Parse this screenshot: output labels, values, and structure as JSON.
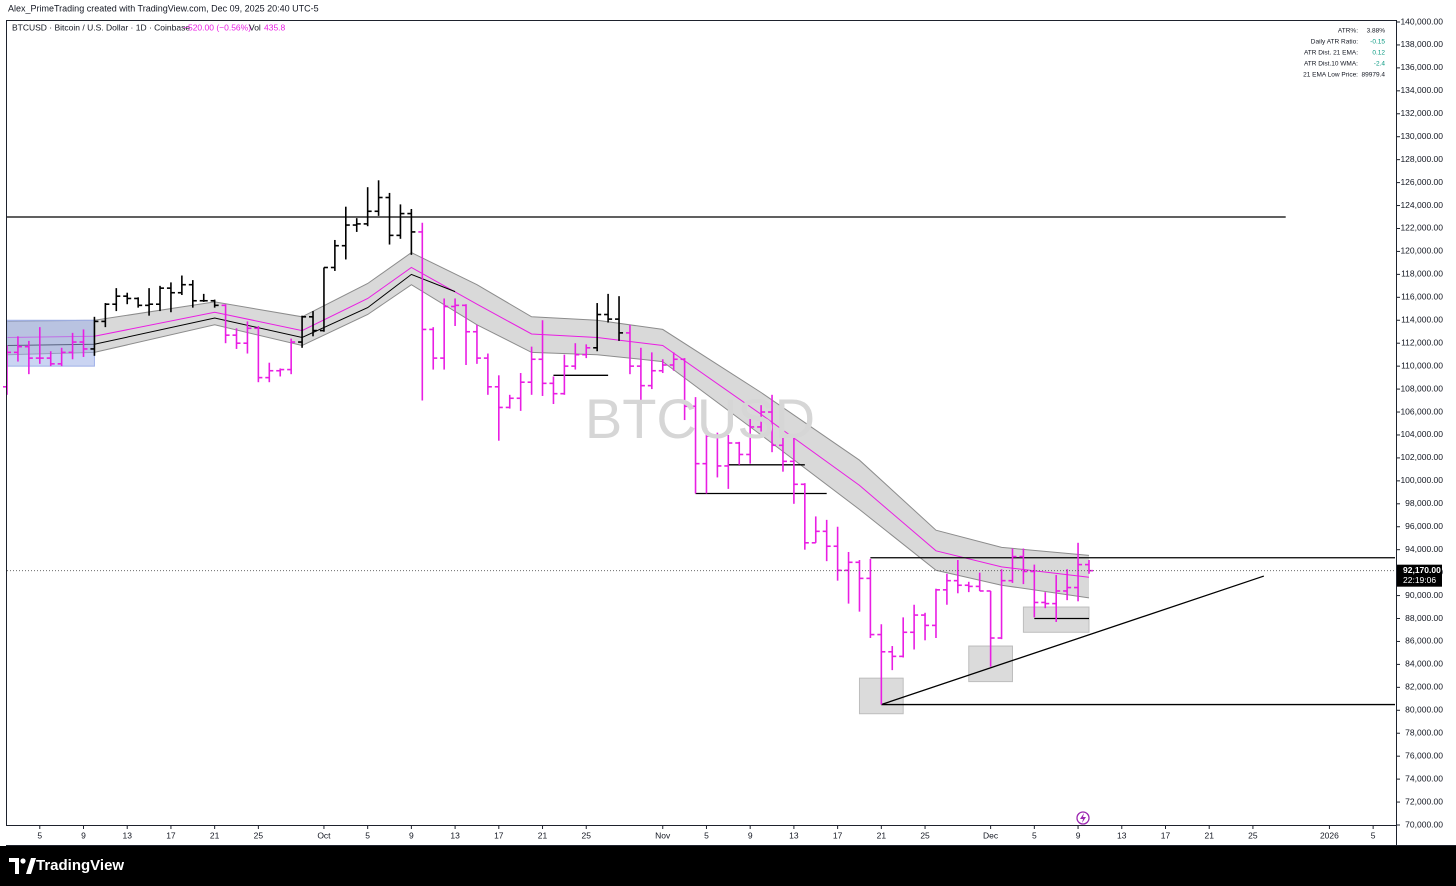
{
  "credit": "Alex_PrimeTrading created with TradingView.com, Dec 09, 2025 20:40 UTC-5",
  "brand": "TradingView",
  "chart_data": {
    "type": "ohlc",
    "title": "BTCUSD · Bitcoin / U.S. Dollar · 1D · Coinbase",
    "change": "−520.00 (−0.56%)",
    "volume_label": "Vol",
    "volume": "435.8",
    "watermark": "BTCUSD",
    "stats": [
      {
        "label": "ATR%:",
        "value": "3.88%",
        "color": "#131722"
      },
      {
        "label": "Daily ATR Ratio:",
        "value": "-0.15",
        "color": "#089981"
      },
      {
        "label": "ATR Dist. 21 EMA:",
        "value": "0.12",
        "color": "#089981"
      },
      {
        "label": "ATR Dist.10 WMA:",
        "value": "-2.4",
        "color": "#089981"
      },
      {
        "label": "21 EMA Low Price:",
        "value": "89979.4",
        "color": "#131722"
      }
    ],
    "x": [
      "2025-09-02",
      "2025-09-03",
      "2025-09-04",
      "2025-09-05",
      "2025-09-06",
      "2025-09-07",
      "2025-09-08",
      "2025-09-09",
      "2025-09-10",
      "2025-09-11",
      "2025-09-12",
      "2025-09-13",
      "2025-09-14",
      "2025-09-15",
      "2025-09-16",
      "2025-09-17",
      "2025-09-18",
      "2025-09-19",
      "2025-09-20",
      "2025-09-21",
      "2025-09-22",
      "2025-09-23",
      "2025-09-24",
      "2025-09-25",
      "2025-09-26",
      "2025-09-27",
      "2025-09-28",
      "2025-09-29",
      "2025-09-30",
      "2025-10-01",
      "2025-10-02",
      "2025-10-03",
      "2025-10-04",
      "2025-10-05",
      "2025-10-06",
      "2025-10-07",
      "2025-10-08",
      "2025-10-09",
      "2025-10-10",
      "2025-10-11",
      "2025-10-12",
      "2025-10-13",
      "2025-10-14",
      "2025-10-15",
      "2025-10-16",
      "2025-10-17",
      "2025-10-18",
      "2025-10-19",
      "2025-10-20",
      "2025-10-21",
      "2025-10-22",
      "2025-10-23",
      "2025-10-24",
      "2025-10-25",
      "2025-10-26",
      "2025-10-27",
      "2025-10-28",
      "2025-10-29",
      "2025-10-30",
      "2025-10-31",
      "2025-11-01",
      "2025-11-02",
      "2025-11-03",
      "2025-11-04",
      "2025-11-05",
      "2025-11-06",
      "2025-11-07",
      "2025-11-08",
      "2025-11-09",
      "2025-11-10",
      "2025-11-11",
      "2025-11-12",
      "2025-11-13",
      "2025-11-14",
      "2025-11-15",
      "2025-11-16",
      "2025-11-17",
      "2025-11-18",
      "2025-11-19",
      "2025-11-20",
      "2025-11-21",
      "2025-11-22",
      "2025-11-23",
      "2025-11-24",
      "2025-11-25",
      "2025-11-26",
      "2025-11-27",
      "2025-11-28",
      "2025-11-29",
      "2025-11-30",
      "2025-12-01",
      "2025-12-02",
      "2025-12-03",
      "2025-12-04",
      "2025-12-05",
      "2025-12-06",
      "2025-12-07",
      "2025-12-08",
      "2025-12-09",
      "2025-12-10"
    ],
    "open": [
      108200,
      111200,
      111700,
      110700,
      110700,
      110200,
      111200,
      112100,
      111500,
      113900,
      115400,
      116100,
      115900,
      115300,
      115400,
      116800,
      116400,
      117100,
      115700,
      115700,
      115300,
      112700,
      112000,
      113300,
      109000,
      109600,
      109700,
      112100,
      114300,
      113100,
      118600,
      120500,
      122300,
      122400,
      123500,
      124700,
      121400,
      123300,
      121700,
      113200,
      110700,
      115200,
      115300,
      113000,
      110700,
      108200,
      106400,
      107200,
      108600,
      110600,
      108500,
      107600,
      110000,
      111000,
      111600,
      114500,
      114100,
      112900,
      110000,
      108300,
      109600,
      110100,
      110600,
      106500,
      101500,
      103900,
      101300,
      103300,
      102300,
      104700,
      106000,
      103100,
      101700,
      99700,
      94600,
      95600,
      94300,
      92200,
      92900,
      91500,
      86600,
      85100,
      84700,
      86800,
      88300,
      87400,
      90500,
      91300,
      90900,
      90800,
      90400,
      86300,
      91300,
      93400,
      92100,
      89400,
      89300,
      90400,
      90700,
      92700
    ],
    "high": [
      111800,
      112600,
      112200,
      113400,
      111300,
      111600,
      112900,
      113200,
      114300,
      115500,
      116800,
      116400,
      116000,
      116800,
      117000,
      117300,
      117900,
      117500,
      116300,
      115800,
      115400,
      113300,
      113900,
      113500,
      110300,
      109800,
      112400,
      114400,
      114800,
      118600,
      121000,
      123900,
      122900,
      125600,
      126200,
      125100,
      124100,
      123700,
      122500,
      113400,
      115900,
      115900,
      115400,
      113600,
      111100,
      109200,
      107500,
      109400,
      111700,
      114000,
      109100,
      111000,
      112000,
      111900,
      115500,
      116300,
      116100,
      113600,
      111600,
      111200,
      110600,
      111200,
      110700,
      107300,
      104600,
      104200,
      104000,
      103400,
      105400,
      106600,
      107500,
      105300,
      104000,
      99800,
      96900,
      96600,
      96000,
      93800,
      93100,
      93200,
      87500,
      85600,
      88100,
      89200,
      88500,
      90600,
      91900,
      93100,
      91200,
      92000,
      90400,
      92300,
      94100,
      94100,
      92700,
      90300,
      91800,
      92300,
      94600,
      93100
    ],
    "low": [
      107500,
      110400,
      109300,
      110200,
      110000,
      110000,
      110600,
      110800,
      110900,
      113400,
      114800,
      115400,
      115100,
      114400,
      114800,
      114700,
      116200,
      115100,
      115600,
      115100,
      112000,
      111500,
      111100,
      108600,
      108600,
      109100,
      109300,
      111600,
      112600,
      113000,
      118300,
      119300,
      121700,
      122200,
      123100,
      120600,
      121100,
      119700,
      107000,
      109700,
      109700,
      113500,
      110100,
      110200,
      107500,
      103500,
      106300,
      106100,
      107500,
      107400,
      106700,
      107500,
      109700,
      110700,
      111300,
      113800,
      112200,
      109300,
      106300,
      108000,
      109400,
      109600,
      105300,
      98900,
      98900,
      100300,
      99300,
      101400,
      101500,
      104300,
      102500,
      100800,
      98000,
      94000,
      94600,
      93000,
      91300,
      89300,
      88600,
      86300,
      80500,
      83500,
      84600,
      85300,
      86100,
      86300,
      89200,
      90200,
      90300,
      90400,
      83800,
      86200,
      91100,
      91000,
      88100,
      88900,
      87700,
      89600,
      89500,
      91900
    ],
    "close": [
      111200,
      111700,
      110700,
      110700,
      110200,
      111200,
      112100,
      111500,
      113900,
      115400,
      116100,
      115900,
      115300,
      115400,
      116800,
      116400,
      117100,
      115700,
      115700,
      115300,
      112700,
      112000,
      113300,
      109000,
      109600,
      109700,
      112100,
      114300,
      113100,
      118600,
      120500,
      122300,
      122400,
      123500,
      124700,
      121400,
      123300,
      121700,
      113200,
      110700,
      115200,
      115300,
      113000,
      110700,
      108200,
      106400,
      107200,
      108600,
      110600,
      108500,
      107600,
      110000,
      111000,
      111600,
      114500,
      114100,
      112900,
      110000,
      108300,
      109600,
      110100,
      110600,
      106500,
      101500,
      103900,
      101300,
      103300,
      102300,
      104700,
      106000,
      103100,
      101700,
      99700,
      94600,
      95600,
      94300,
      92200,
      92900,
      91500,
      86600,
      85100,
      84700,
      86800,
      88300,
      87400,
      90500,
      91300,
      90900,
      90800,
      90400,
      86300,
      91300,
      93400,
      92100,
      89400,
      89300,
      90400,
      90700,
      92700,
      92170
    ],
    "colors": [
      "#e91ee3",
      "#e91ee3",
      "#e91ee3",
      "#e91ee3",
      "#e91ee3",
      "#e91ee3",
      "#e91ee3",
      "#e91ee3",
      "#000000",
      "#000000",
      "#000000",
      "#000000",
      "#000000",
      "#000000",
      "#000000",
      "#000000",
      "#000000",
      "#000000",
      "#000000",
      "#000000",
      "#e91ee3",
      "#e91ee3",
      "#e91ee3",
      "#e91ee3",
      "#e91ee3",
      "#e91ee3",
      "#e91ee3",
      "#000000",
      "#000000",
      "#000000",
      "#000000",
      "#000000",
      "#000000",
      "#000000",
      "#000000",
      "#000000",
      "#000000",
      "#000000",
      "#e91ee3",
      "#e91ee3",
      "#e91ee3",
      "#e91ee3",
      "#e91ee3",
      "#e91ee3",
      "#e91ee3",
      "#e91ee3",
      "#e91ee3",
      "#e91ee3",
      "#e91ee3",
      "#e91ee3",
      "#e91ee3",
      "#e91ee3",
      "#e91ee3",
      "#e91ee3",
      "#000000",
      "#000000",
      "#000000",
      "#e91ee3",
      "#e91ee3",
      "#e91ee3",
      "#e91ee3",
      "#e91ee3",
      "#e91ee3",
      "#e91ee3",
      "#e91ee3",
      "#e91ee3",
      "#e91ee3",
      "#e91ee3",
      "#e91ee3",
      "#e91ee3",
      "#e91ee3",
      "#e91ee3",
      "#e91ee3",
      "#e91ee3",
      "#e91ee3",
      "#e91ee3",
      "#e91ee3",
      "#e91ee3",
      "#e91ee3",
      "#e91ee3",
      "#e91ee3",
      "#e91ee3",
      "#e91ee3",
      "#e91ee3",
      "#e91ee3",
      "#e91ee3",
      "#e91ee3",
      "#e91ee3",
      "#e91ee3",
      "#e91ee3",
      "#e91ee3",
      "#e91ee3",
      "#e91ee3",
      "#e91ee3",
      "#e91ee3",
      "#e91ee3",
      "#e91ee3",
      "#e91ee3",
      "#e91ee3",
      "#e91ee3"
    ],
    "band": {
      "x": [
        "2025-09-02",
        "2025-09-10",
        "2025-09-21",
        "2025-09-29",
        "2025-10-05",
        "2025-10-09",
        "2025-10-15",
        "2025-10-20",
        "2025-10-26",
        "2025-11-01",
        "2025-11-10",
        "2025-11-19",
        "2025-11-26",
        "2025-12-02",
        "2025-12-10"
      ],
      "upper": [
        113900,
        114000,
        115600,
        114300,
        117200,
        119900,
        117100,
        114300,
        114000,
        113200,
        107700,
        101800,
        95700,
        94200,
        93500
      ],
      "lower": [
        111000,
        111200,
        113600,
        111800,
        114500,
        117100,
        113600,
        111200,
        111000,
        110400,
        104000,
        97500,
        92200,
        90900,
        89800
      ],
      "ema": [
        112500,
        112600,
        114700,
        113100,
        115900,
        118600,
        115400,
        112800,
        112500,
        111800,
        105800,
        99600,
        93900,
        92500,
        91600
      ],
      "fill": "#d9d9d9",
      "edge": "#8c8c8c",
      "ema_color": "#e91ee3"
    },
    "wma": {
      "x": [
        "2025-09-02",
        "2025-09-10",
        "2025-09-21",
        "2025-09-29",
        "2025-10-05",
        "2025-10-09",
        "2025-10-13"
      ],
      "values": [
        111800,
        111900,
        114200,
        112500,
        115100,
        118000,
        116500
      ],
      "color": "#000000"
    },
    "drawings": [
      {
        "type": "box",
        "x": [
          "2025-09-02",
          "2025-09-10"
        ],
        "y": [
          114000,
          110000
        ],
        "color": "#9fb0e8"
      },
      {
        "type": "box",
        "x": [
          "2025-11-19",
          "2025-11-23"
        ],
        "y": [
          82800,
          79700
        ],
        "color": "#bdbdbd"
      },
      {
        "type": "box",
        "x": [
          "2025-11-29",
          "2025-12-03"
        ],
        "y": [
          85600,
          82500
        ],
        "color": "#bdbdbd"
      },
      {
        "type": "box",
        "x": [
          "2025-12-04",
          "2025-12-10"
        ],
        "y": [
          89000,
          86800
        ],
        "color": "#bdbdbd"
      },
      {
        "type": "segment",
        "x": [
          "2025-09-02",
          "2025-12-28"
        ],
        "y": [
          123000,
          123000
        ],
        "color": "#000000"
      },
      {
        "type": "segment",
        "x": [
          "2025-11-20",
          "2026-01-07"
        ],
        "y": [
          93300,
          93300
        ],
        "color": "#000000"
      },
      {
        "type": "segment",
        "x": [
          "2025-11-21",
          "2026-01-07"
        ],
        "y": [
          80500,
          80500
        ],
        "color": "#000000"
      },
      {
        "type": "segment",
        "x": [
          "2025-10-22",
          "2025-10-27"
        ],
        "y": [
          109200,
          109200
        ],
        "color": "#000000"
      },
      {
        "type": "segment",
        "x": [
          "2025-11-07",
          "2025-11-14"
        ],
        "y": [
          101400,
          101400
        ],
        "color": "#000000"
      },
      {
        "type": "segment",
        "x": [
          "2025-11-04",
          "2025-11-16"
        ],
        "y": [
          98900,
          98900
        ],
        "color": "#000000"
      },
      {
        "type": "segment",
        "x": [
          "2025-12-05",
          "2025-12-10"
        ],
        "y": [
          88000,
          88000
        ],
        "color": "#000000"
      },
      {
        "type": "segment",
        "x": [
          "2025-11-21",
          "2025-12-26"
        ],
        "y": [
          80500,
          91700
        ],
        "color": "#000000"
      }
    ],
    "last_price": {
      "value": 92170,
      "label": "92,170.00",
      "countdown": "22:19:06"
    },
    "xlim": [
      "2025-09-02",
      "2026-01-07"
    ],
    "xticks": [
      {
        "value": "2025-09-05",
        "label": "5"
      },
      {
        "value": "2025-09-09",
        "label": "9"
      },
      {
        "value": "2025-09-13",
        "label": "13"
      },
      {
        "value": "2025-09-17",
        "label": "17"
      },
      {
        "value": "2025-09-21",
        "label": "21"
      },
      {
        "value": "2025-09-25",
        "label": "25"
      },
      {
        "value": "2025-10-01",
        "label": "Oct"
      },
      {
        "value": "2025-10-05",
        "label": "5"
      },
      {
        "value": "2025-10-09",
        "label": "9"
      },
      {
        "value": "2025-10-13",
        "label": "13"
      },
      {
        "value": "2025-10-17",
        "label": "17"
      },
      {
        "value": "2025-10-21",
        "label": "21"
      },
      {
        "value": "2025-10-25",
        "label": "25"
      },
      {
        "value": "2025-11-01",
        "label": "Nov"
      },
      {
        "value": "2025-11-05",
        "label": "5"
      },
      {
        "value": "2025-11-09",
        "label": "9"
      },
      {
        "value": "2025-11-13",
        "label": "13"
      },
      {
        "value": "2025-11-17",
        "label": "17"
      },
      {
        "value": "2025-11-21",
        "label": "21"
      },
      {
        "value": "2025-11-25",
        "label": "25"
      },
      {
        "value": "2025-12-01",
        "label": "Dec"
      },
      {
        "value": "2025-12-05",
        "label": "5"
      },
      {
        "value": "2025-12-09",
        "label": "9"
      },
      {
        "value": "2025-12-13",
        "label": "13"
      },
      {
        "value": "2025-12-17",
        "label": "17"
      },
      {
        "value": "2025-12-21",
        "label": "21"
      },
      {
        "value": "2025-12-25",
        "label": "25"
      },
      {
        "value": "2026-01-01",
        "label": "2026"
      },
      {
        "value": "2026-01-05",
        "label": "5"
      }
    ],
    "ylim": [
      70000,
      140000
    ],
    "yticks": [
      {
        "value": 70000,
        "label": "70,000.00"
      },
      {
        "value": 72000,
        "label": "72,000.00"
      },
      {
        "value": 74000,
        "label": "74,000.00"
      },
      {
        "value": 76000,
        "label": "76,000.00"
      },
      {
        "value": 78000,
        "label": "78,000.00"
      },
      {
        "value": 80000,
        "label": "80,000.00"
      },
      {
        "value": 82000,
        "label": "82,000.00"
      },
      {
        "value": 84000,
        "label": "84,000.00"
      },
      {
        "value": 86000,
        "label": "86,000.00"
      },
      {
        "value": 88000,
        "label": "88,000.00"
      },
      {
        "value": 90000,
        "label": "90,000.00"
      },
      {
        "value": 92000,
        "label": "92,000.00"
      },
      {
        "value": 94000,
        "label": "94,000.00"
      },
      {
        "value": 96000,
        "label": "96,000.00"
      },
      {
        "value": 98000,
        "label": "98,000.00"
      },
      {
        "value": 100000,
        "label": "100,000.00"
      },
      {
        "value": 102000,
        "label": "102,000.00"
      },
      {
        "value": 104000,
        "label": "104,000.00"
      },
      {
        "value": 106000,
        "label": "106,000.00"
      },
      {
        "value": 108000,
        "label": "108,000.00"
      },
      {
        "value": 110000,
        "label": "110,000.00"
      },
      {
        "value": 112000,
        "label": "112,000.00"
      },
      {
        "value": 114000,
        "label": "114,000.00"
      },
      {
        "value": 116000,
        "label": "116,000.00"
      },
      {
        "value": 118000,
        "label": "118,000.00"
      },
      {
        "value": 120000,
        "label": "120,000.00"
      },
      {
        "value": 122000,
        "label": "122,000.00"
      },
      {
        "value": 124000,
        "label": "124,000.00"
      },
      {
        "value": 126000,
        "label": "126,000.00"
      },
      {
        "value": 128000,
        "label": "128,000.00"
      },
      {
        "value": 130000,
        "label": "130,000.00"
      },
      {
        "value": 132000,
        "label": "132,000.00"
      },
      {
        "value": 134000,
        "label": "134,000.00"
      },
      {
        "value": 136000,
        "label": "136,000.00"
      },
      {
        "value": 138000,
        "label": "138,000.00"
      },
      {
        "value": 140000,
        "label": "140,000.00"
      }
    ],
    "grid": false
  }
}
